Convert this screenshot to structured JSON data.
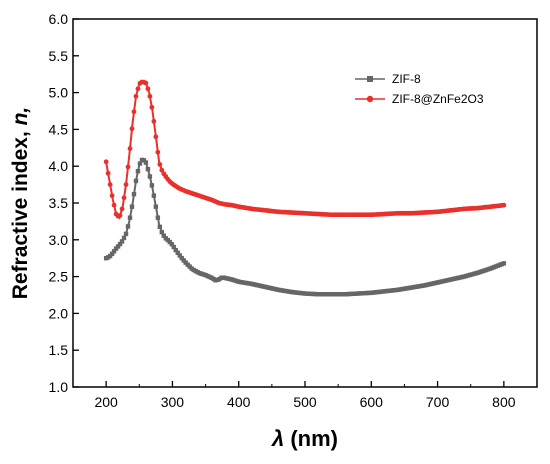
{
  "chart_data": {
    "type": "line",
    "title": "",
    "xlabel_symbol": "λ",
    "xlabel_unit": " (nm)",
    "ylabel_text": "Refractive index, ",
    "ylabel_symbol": "n,",
    "xlim": [
      150,
      850
    ],
    "ylim": [
      1.0,
      6.0
    ],
    "xticks": [
      "200",
      "300",
      "400",
      "500",
      "600",
      "700",
      "800"
    ],
    "yticks": [
      "1.0",
      "1.5",
      "2.0",
      "2.5",
      "3.0",
      "3.5",
      "4.0",
      "4.5",
      "5.0",
      "5.5",
      "6.0"
    ],
    "grid": false,
    "legend_position": "top-right",
    "x": [
      200,
      205,
      210,
      215,
      220,
      225,
      230,
      235,
      240,
      245,
      250,
      255,
      260,
      265,
      270,
      275,
      280,
      285,
      290,
      295,
      300,
      305,
      310,
      315,
      320,
      330,
      340,
      350,
      360,
      365,
      370,
      375,
      380,
      390,
      400,
      420,
      440,
      460,
      480,
      500,
      520,
      540,
      560,
      580,
      600,
      620,
      640,
      660,
      680,
      700,
      720,
      740,
      760,
      780,
      800
    ],
    "series": [
      {
        "name": "ZIF-8",
        "color": "#666666",
        "marker": "square",
        "values": [
          2.75,
          2.77,
          2.82,
          2.88,
          2.93,
          2.99,
          3.08,
          3.25,
          3.5,
          3.8,
          4.02,
          4.1,
          4.05,
          3.9,
          3.7,
          3.45,
          3.2,
          3.08,
          3.02,
          2.98,
          2.93,
          2.86,
          2.8,
          2.74,
          2.69,
          2.6,
          2.55,
          2.52,
          2.48,
          2.45,
          2.46,
          2.49,
          2.48,
          2.46,
          2.43,
          2.4,
          2.36,
          2.32,
          2.29,
          2.27,
          2.26,
          2.26,
          2.26,
          2.27,
          2.28,
          2.3,
          2.32,
          2.35,
          2.38,
          2.42,
          2.46,
          2.5,
          2.55,
          2.61,
          2.68
        ]
      },
      {
        "name": "ZIF-8@ZnFe2O3",
        "color": "#e8302c",
        "marker": "circle",
        "values": [
          4.06,
          3.8,
          3.55,
          3.35,
          3.3,
          3.45,
          3.75,
          4.15,
          4.6,
          4.95,
          5.12,
          5.15,
          5.13,
          5.0,
          4.75,
          4.4,
          4.05,
          3.92,
          3.86,
          3.8,
          3.76,
          3.73,
          3.7,
          3.68,
          3.66,
          3.63,
          3.6,
          3.57,
          3.54,
          3.52,
          3.5,
          3.49,
          3.48,
          3.47,
          3.45,
          3.42,
          3.4,
          3.38,
          3.37,
          3.36,
          3.35,
          3.34,
          3.34,
          3.34,
          3.34,
          3.35,
          3.36,
          3.36,
          3.37,
          3.38,
          3.4,
          3.42,
          3.43,
          3.45,
          3.47
        ]
      }
    ]
  }
}
